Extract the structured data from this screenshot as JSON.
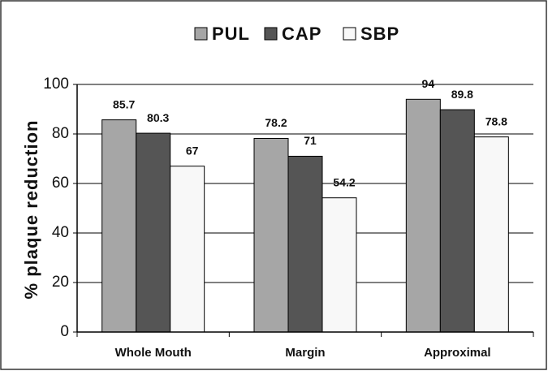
{
  "chart_data": {
    "type": "bar",
    "y_label": "% plaque reduction",
    "categories": [
      "Whole Mouth",
      "Margin",
      "Approximal"
    ],
    "series": [
      {
        "name": "PUL",
        "color": "#a6a6a6",
        "values": [
          85.7,
          78.2,
          94
        ]
      },
      {
        "name": "CAP",
        "color": "#555555",
        "values": [
          80.3,
          71,
          89.8
        ]
      },
      {
        "name": "SBP",
        "color": "#f8f8f8",
        "values": [
          67,
          54.2,
          78.8
        ]
      }
    ],
    "ylim": [
      0,
      100
    ],
    "yticks": [
      0,
      20,
      40,
      60,
      80,
      100
    ],
    "grid": true,
    "legend": "top"
  }
}
